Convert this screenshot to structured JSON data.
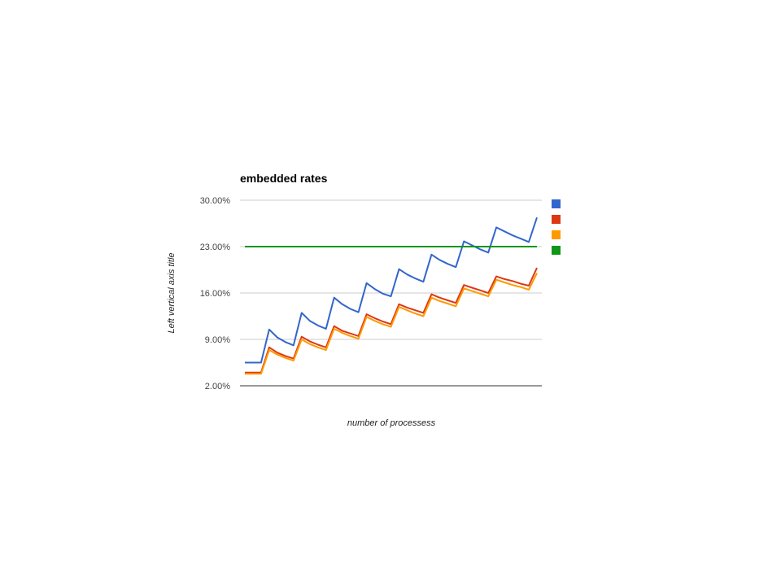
{
  "chart_data": {
    "type": "line",
    "title": "embedded rates",
    "xlabel": "number of processess",
    "ylabel": "Left vertical axis title",
    "ylim": [
      2,
      30
    ],
    "yticks": [
      "30.00%",
      "23.00%",
      "16.00%",
      "9.00%",
      "2.00%"
    ],
    "ytick_values": [
      30,
      23,
      16,
      9,
      2
    ],
    "grid": true,
    "legend": "right",
    "x": [
      1,
      2,
      3,
      4,
      5,
      6,
      7,
      8,
      9,
      10,
      11,
      12,
      13,
      14,
      15,
      16,
      17,
      18,
      19,
      20,
      21,
      22,
      23,
      24,
      25,
      26,
      27,
      28,
      29,
      30,
      31,
      32,
      33,
      34,
      35,
      36,
      37
    ],
    "series": [
      {
        "color": "#3366cc",
        "values": [
          5.5,
          5.5,
          5.5,
          10.5,
          9.3,
          8.6,
          8.1,
          13.0,
          11.8,
          11.1,
          10.6,
          15.3,
          14.3,
          13.6,
          13.1,
          17.5,
          16.6,
          15.9,
          15.5,
          19.6,
          18.8,
          18.2,
          17.7,
          21.8,
          21.0,
          20.4,
          19.9,
          23.8,
          23.2,
          22.6,
          22.1,
          25.9,
          25.3,
          24.7,
          24.2,
          23.7,
          27.4
        ]
      },
      {
        "color": "#dc3912",
        "values": [
          4.0,
          4.0,
          4.0,
          7.8,
          7.0,
          6.5,
          6.1,
          9.4,
          8.7,
          8.2,
          7.8,
          11.0,
          10.3,
          9.9,
          9.5,
          12.8,
          12.2,
          11.7,
          11.3,
          14.3,
          13.8,
          13.4,
          13.0,
          15.8,
          15.3,
          14.9,
          14.5,
          17.2,
          16.8,
          16.4,
          16.0,
          18.5,
          18.1,
          17.8,
          17.4,
          17.1,
          19.8
        ]
      },
      {
        "color": "#ff9900",
        "values": [
          3.8,
          3.8,
          3.8,
          7.4,
          6.7,
          6.2,
          5.8,
          9.0,
          8.3,
          7.8,
          7.4,
          10.6,
          10.0,
          9.5,
          9.1,
          12.4,
          11.8,
          11.3,
          10.9,
          13.9,
          13.4,
          12.9,
          12.5,
          15.3,
          14.8,
          14.4,
          14.0,
          16.7,
          16.3,
          15.9,
          15.5,
          18.0,
          17.6,
          17.2,
          16.9,
          16.5,
          19.0
        ]
      },
      {
        "color": "#109618",
        "values": [
          23,
          23,
          23,
          23,
          23,
          23,
          23,
          23,
          23,
          23,
          23,
          23,
          23,
          23,
          23,
          23,
          23,
          23,
          23,
          23,
          23,
          23,
          23,
          23,
          23,
          23,
          23,
          23,
          23,
          23,
          23,
          23,
          23,
          23,
          23,
          23,
          23
        ]
      }
    ]
  }
}
